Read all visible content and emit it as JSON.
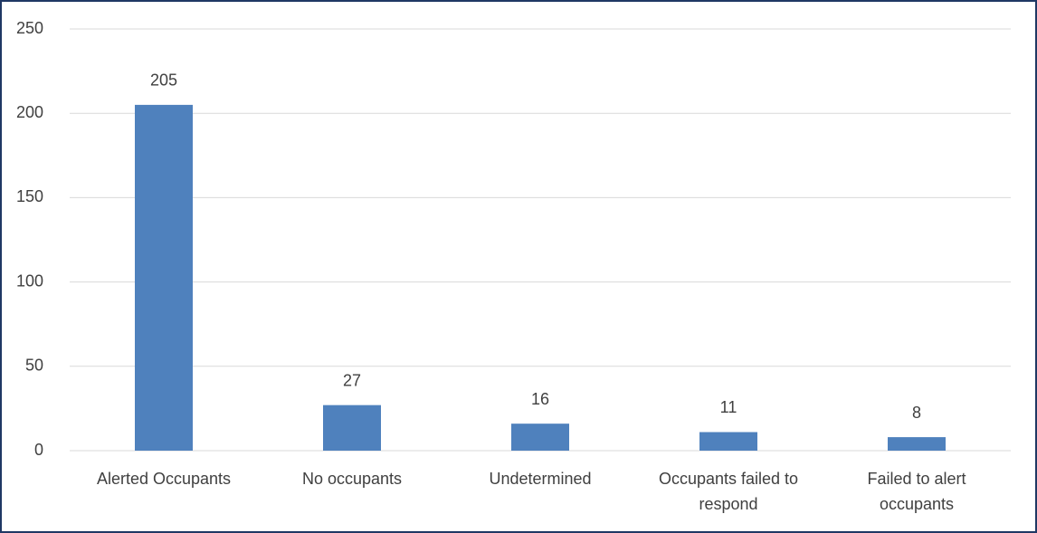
{
  "chart_data": {
    "type": "bar",
    "categories": [
      "Alerted Occupants",
      "No occupants",
      "Undetermined",
      "Occupants failed to respond",
      "Failed to alert occupants"
    ],
    "values": [
      205,
      27,
      16,
      11,
      8
    ],
    "color": "#4f81bd",
    "ylim": [
      0,
      250
    ],
    "yticks": [
      0,
      50,
      100,
      150,
      200,
      250
    ],
    "grid": true
  }
}
